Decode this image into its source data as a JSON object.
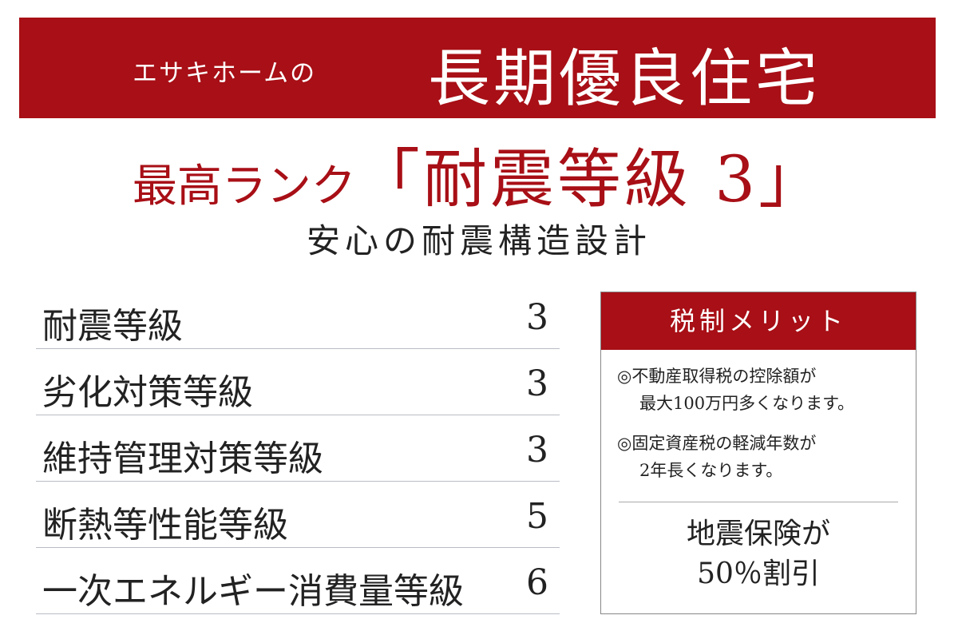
{
  "banner": {
    "brand": "エサキホームの",
    "title": "長期優良住宅",
    "color": "#a80f16"
  },
  "headline": {
    "prefix": "最高ランク",
    "highlight": "「耐震等級 3」"
  },
  "subtitle": "安心の耐震構造設計",
  "grades": [
    {
      "label": "耐震等級",
      "value": "3"
    },
    {
      "label": "劣化対策等級",
      "value": "3"
    },
    {
      "label": "維持管理対策等級",
      "value": "3"
    },
    {
      "label": "断熱等性能等級",
      "value": "5"
    },
    {
      "label": "一次エネルギー消費量等級",
      "value": "6"
    }
  ],
  "tax_box": {
    "title": "税制メリット",
    "notes": [
      {
        "line1": "◎不動産取得税の控除額が",
        "line2": "最大100万円多くなります。"
      },
      {
        "line1": "◎固定資産税の軽減年数が",
        "line2": "2年長くなります。"
      }
    ],
    "insurance_line1": "地震保険が",
    "insurance_line2": "50％割引"
  }
}
